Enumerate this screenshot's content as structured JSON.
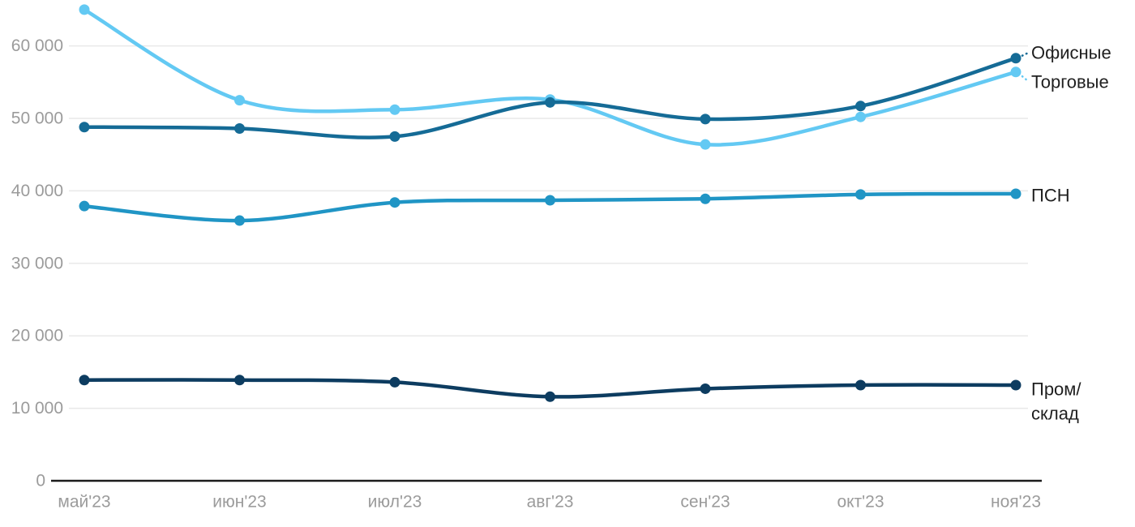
{
  "chart_data": {
    "type": "line",
    "title": "",
    "xlabel": "",
    "ylabel": "",
    "grid": true,
    "legend_position": "right-inline-labels",
    "categories": [
      "май'23",
      "июн'23",
      "июл'23",
      "авг'23",
      "сен'23",
      "окт'23",
      "ноя'23"
    ],
    "series": [
      {
        "id": "ofisnye",
        "name": "Офисные",
        "label_lines": [
          "Офисные"
        ],
        "color": "#156B96",
        "leader": true,
        "values": [
          48800,
          48600,
          47500,
          52200,
          49900,
          51700,
          58300
        ]
      },
      {
        "id": "torgovye",
        "name": "Торговые",
        "label_lines": [
          "Торговые"
        ],
        "color": "#63C9F3",
        "leader": true,
        "values": [
          65000,
          52500,
          51200,
          52600,
          46400,
          50200,
          56400
        ]
      },
      {
        "id": "psn",
        "name": "ПСН",
        "label_lines": [
          "ПСН"
        ],
        "color": "#2095C5",
        "leader": false,
        "values": [
          37900,
          35900,
          38400,
          38700,
          38900,
          39500,
          39600
        ]
      },
      {
        "id": "prom-sklad",
        "name": "Пром/склад",
        "label_lines": [
          "Пром/",
          "склад"
        ],
        "color": "#0D3C60",
        "leader": false,
        "values": [
          13900,
          13900,
          13600,
          11600,
          12700,
          13200,
          13200
        ]
      }
    ],
    "yticks": [
      {
        "value": 0,
        "label": "0"
      },
      {
        "value": 10000,
        "label": "10 000"
      },
      {
        "value": 20000,
        "label": "20 000"
      },
      {
        "value": 30000,
        "label": "30 000"
      },
      {
        "value": 40000,
        "label": "40 000"
      },
      {
        "value": 50000,
        "label": "50 000"
      },
      {
        "value": 60000,
        "label": "60 000"
      }
    ],
    "ylim": [
      0,
      66000
    ],
    "colors": {
      "tick_text": "#9B9B9B",
      "gridline": "#E9E9E9",
      "axis_line": "#1C1C1C",
      "series_label_text": "#1F1F1F",
      "background": "#FFFFFF"
    }
  }
}
